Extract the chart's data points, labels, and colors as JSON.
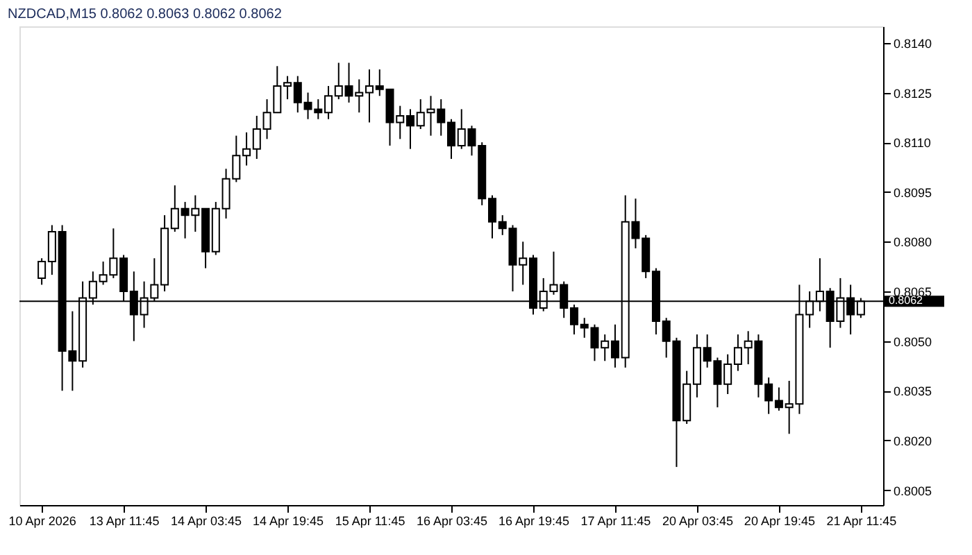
{
  "chart_data": {
    "type": "candlestick",
    "title": "NZDCAD,M15  0.8062 0.8063 0.8062 0.8062",
    "color": "#000000",
    "categories": [
      "10 Apr 2026",
      null,
      null,
      null,
      null,
      null,
      null,
      null,
      "13 Apr 11:45",
      null,
      null,
      null,
      null,
      null,
      null,
      null,
      "14 Apr 03:45",
      null,
      null,
      null,
      null,
      null,
      null,
      null,
      "14 Apr 19:45",
      null,
      null,
      null,
      null,
      null,
      null,
      null,
      "15 Apr 11:45",
      null,
      null,
      null,
      null,
      null,
      null,
      null,
      "16 Apr 03:45",
      null,
      null,
      null,
      null,
      null,
      null,
      null,
      "16 Apr 19:45",
      null,
      null,
      null,
      null,
      null,
      null,
      null,
      "17 Apr 11:45",
      null,
      null,
      null,
      null,
      null,
      null,
      null,
      "20 Apr 03:45",
      null,
      null,
      null,
      null,
      null,
      null,
      null,
      "20 Apr 19:45",
      null,
      null,
      null,
      null,
      null,
      null,
      null,
      "21 Apr 11:45"
    ],
    "ohlc": [
      [
        0.8069,
        0.8075,
        0.8067,
        0.8074
      ],
      [
        0.8074,
        0.8085,
        0.807,
        0.8083
      ],
      [
        0.8083,
        0.8085,
        0.8035,
        0.8047
      ],
      [
        0.8047,
        0.8059,
        0.8035,
        0.8044
      ],
      [
        0.8044,
        0.8068,
        0.8042,
        0.8063
      ],
      [
        0.8063,
        0.8071,
        0.8061,
        0.8068
      ],
      [
        0.8068,
        0.8074,
        0.8067,
        0.807
      ],
      [
        0.807,
        0.8084,
        0.8069,
        0.8075
      ],
      [
        0.8075,
        0.8076,
        0.8062,
        0.8065
      ],
      [
        0.8065,
        0.8071,
        0.805,
        0.8058
      ],
      [
        0.8058,
        0.8068,
        0.8054,
        0.8063
      ],
      [
        0.8063,
        0.8075,
        0.8062,
        0.8067
      ],
      [
        0.8067,
        0.8088,
        0.8065,
        0.8084
      ],
      [
        0.8084,
        0.8097,
        0.8083,
        0.809
      ],
      [
        0.809,
        0.8092,
        0.8081,
        0.8088
      ],
      [
        0.8088,
        0.8094,
        0.8083,
        0.809
      ],
      [
        0.809,
        0.809,
        0.8072,
        0.8077
      ],
      [
        0.8077,
        0.8092,
        0.8076,
        0.809
      ],
      [
        0.809,
        0.8102,
        0.8087,
        0.8099
      ],
      [
        0.8099,
        0.8112,
        0.8098,
        0.8106
      ],
      [
        0.8106,
        0.8113,
        0.8103,
        0.8108
      ],
      [
        0.8108,
        0.8118,
        0.8105,
        0.8114
      ],
      [
        0.8114,
        0.8123,
        0.8111,
        0.8119
      ],
      [
        0.8119,
        0.8133,
        0.8119,
        0.8127
      ],
      [
        0.8127,
        0.813,
        0.8123,
        0.8128
      ],
      [
        0.8128,
        0.813,
        0.8119,
        0.8122
      ],
      [
        0.8122,
        0.8125,
        0.8117,
        0.812
      ],
      [
        0.812,
        0.8123,
        0.8117,
        0.8119
      ],
      [
        0.8119,
        0.8127,
        0.8117,
        0.8124
      ],
      [
        0.8124,
        0.8134,
        0.8123,
        0.8127
      ],
      [
        0.8127,
        0.8134,
        0.8122,
        0.8124
      ],
      [
        0.8124,
        0.8129,
        0.8119,
        0.8125
      ],
      [
        0.8125,
        0.8132,
        0.8116,
        0.8127
      ],
      [
        0.8127,
        0.8132,
        0.8124,
        0.8126
      ],
      [
        0.8126,
        0.8126,
        0.8109,
        0.8116
      ],
      [
        0.8116,
        0.8121,
        0.8111,
        0.8118
      ],
      [
        0.8118,
        0.812,
        0.8108,
        0.8115
      ],
      [
        0.8115,
        0.8123,
        0.8114,
        0.8119
      ],
      [
        0.8119,
        0.8124,
        0.8112,
        0.812
      ],
      [
        0.812,
        0.8123,
        0.8112,
        0.8116
      ],
      [
        0.8116,
        0.8117,
        0.8105,
        0.8109
      ],
      [
        0.8109,
        0.812,
        0.8108,
        0.8114
      ],
      [
        0.8114,
        0.8115,
        0.8106,
        0.8109
      ],
      [
        0.8109,
        0.811,
        0.8091,
        0.8093
      ],
      [
        0.8093,
        0.8094,
        0.8081,
        0.8086
      ],
      [
        0.8086,
        0.8088,
        0.8082,
        0.8084
      ],
      [
        0.8084,
        0.8085,
        0.8065,
        0.8073
      ],
      [
        0.8073,
        0.808,
        0.8067,
        0.8075
      ],
      [
        0.8075,
        0.8076,
        0.8058,
        0.806
      ],
      [
        0.806,
        0.8069,
        0.8059,
        0.8065
      ],
      [
        0.8065,
        0.8077,
        0.8064,
        0.8067
      ],
      [
        0.8067,
        0.8068,
        0.8057,
        0.806
      ],
      [
        0.806,
        0.8061,
        0.8052,
        0.8055
      ],
      [
        0.8055,
        0.8057,
        0.8051,
        0.8054
      ],
      [
        0.8054,
        0.8055,
        0.8044,
        0.8048
      ],
      [
        0.8048,
        0.8052,
        0.8044,
        0.805
      ],
      [
        0.805,
        0.8055,
        0.8042,
        0.8045
      ],
      [
        0.8045,
        0.8094,
        0.8042,
        0.8086
      ],
      [
        0.8086,
        0.8093,
        0.8078,
        0.8081
      ],
      [
        0.8081,
        0.8082,
        0.8069,
        0.8071
      ],
      [
        0.8071,
        0.8072,
        0.8052,
        0.8056
      ],
      [
        0.8056,
        0.8057,
        0.8045,
        0.805
      ],
      [
        0.805,
        0.8051,
        0.8012,
        0.8026
      ],
      [
        0.8026,
        0.8041,
        0.8025,
        0.8037
      ],
      [
        0.8037,
        0.8052,
        0.8033,
        0.8048
      ],
      [
        0.8048,
        0.8052,
        0.8042,
        0.8044
      ],
      [
        0.8044,
        0.8045,
        0.803,
        0.8037
      ],
      [
        0.8037,
        0.8046,
        0.8034,
        0.8043
      ],
      [
        0.8043,
        0.8052,
        0.8041,
        0.8048
      ],
      [
        0.8048,
        0.8053,
        0.8043,
        0.805
      ],
      [
        0.805,
        0.8052,
        0.8033,
        0.8037
      ],
      [
        0.8037,
        0.8039,
        0.8028,
        0.8032
      ],
      [
        0.8032,
        0.8036,
        0.8029,
        0.803
      ],
      [
        0.803,
        0.8038,
        0.8022,
        0.8031
      ],
      [
        0.8031,
        0.8067,
        0.8028,
        0.8058
      ],
      [
        0.8058,
        0.8065,
        0.8054,
        0.8062
      ],
      [
        0.8062,
        0.8075,
        0.8059,
        0.8065
      ],
      [
        0.8065,
        0.8066,
        0.8048,
        0.8056
      ],
      [
        0.8056,
        0.8069,
        0.8054,
        0.8063
      ],
      [
        0.8063,
        0.8067,
        0.8052,
        0.8058
      ],
      [
        0.8058,
        0.8063,
        0.8057,
        0.8062
      ]
    ],
    "ylim": [
      0.80005,
      0.8145
    ],
    "yticks": [
      {
        "value": 0.8005,
        "label": "0.8005"
      },
      {
        "value": 0.802,
        "label": "0.8020"
      },
      {
        "value": 0.8035,
        "label": "0.8035"
      },
      {
        "value": 0.805,
        "label": "0.8050"
      },
      {
        "value": 0.8065,
        "label": "0.8065"
      },
      {
        "value": 0.808,
        "label": "0.8080"
      },
      {
        "value": 0.8095,
        "label": "0.8095"
      },
      {
        "value": 0.811,
        "label": "0.8110"
      },
      {
        "value": 0.8125,
        "label": "0.8125"
      },
      {
        "value": 0.814,
        "label": "0.8140"
      }
    ],
    "ref_lines": [
      {
        "axis": "y",
        "value": 0.8062,
        "label": "0.8062",
        "color": "#000000"
      }
    ]
  }
}
